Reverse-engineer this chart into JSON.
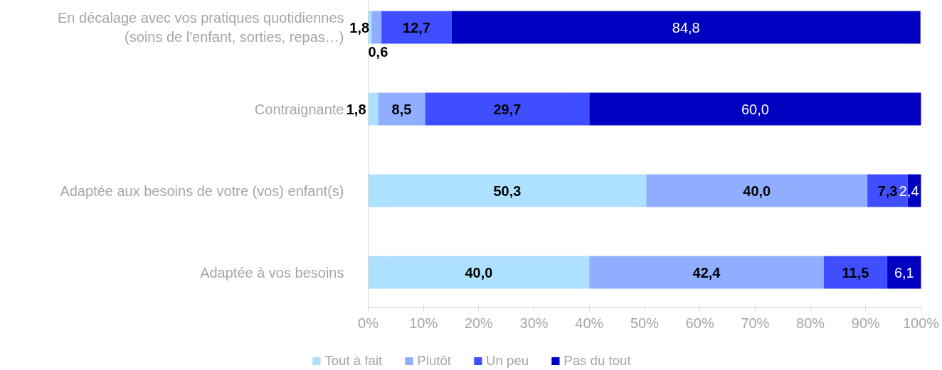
{
  "chart_data": {
    "type": "bar",
    "orientation": "horizontal",
    "stacked": true,
    "categories": [
      "En décalage avec vos pratiques quotidiennes (soins de l'enfant, sorties, repas…)",
      "Contraignante",
      "Adaptée aux besoins de votre (vos) enfant(s)",
      "Adaptée à vos besoins"
    ],
    "series": [
      {
        "name": "Tout à fait",
        "color": "#aee0ff",
        "values": [
          0.6,
          1.8,
          50.3,
          40.0
        ],
        "value_labels": [
          "0,6",
          "1,8",
          "50,3",
          "40,0"
        ]
      },
      {
        "name": "Plutôt",
        "color": "#8faeff",
        "values": [
          1.8,
          8.5,
          40.0,
          42.4
        ],
        "value_labels": [
          "1,8",
          "8,5",
          "40,0",
          "42,4"
        ]
      },
      {
        "name": "Un peu",
        "color": "#3f4fff",
        "values": [
          12.7,
          29.7,
          7.3,
          11.5
        ],
        "value_labels": [
          "12,7",
          "29,7",
          "7,3",
          "11,5"
        ]
      },
      {
        "name": "Pas du tout",
        "color": "#0000c0",
        "values": [
          84.8,
          60.0,
          2.4,
          6.1
        ],
        "value_labels": [
          "84,8",
          "60,0",
          "2,4",
          "6,1"
        ]
      }
    ],
    "xlim": [
      0,
      100
    ],
    "xticks": [
      {
        "value": 0,
        "label": "0%"
      },
      {
        "value": 10,
        "label": "10%"
      },
      {
        "value": 20,
        "label": "20%"
      },
      {
        "value": 30,
        "label": "30%"
      },
      {
        "value": 40,
        "label": "40%"
      },
      {
        "value": 50,
        "label": "50%"
      },
      {
        "value": 60,
        "label": "60%"
      },
      {
        "value": 70,
        "label": "70%"
      },
      {
        "value": 80,
        "label": "80%"
      },
      {
        "value": 90,
        "label": "90%"
      },
      {
        "value": 100,
        "label": "100%"
      }
    ],
    "grid": false,
    "legend": "bottom"
  }
}
